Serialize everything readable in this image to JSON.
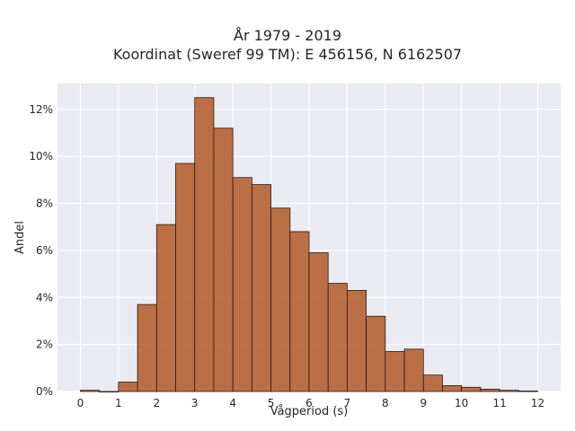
{
  "chart_data": {
    "type": "bar",
    "title": "År 1979 - 2019",
    "subtitle": "Koordinat (Sweref 99 TM): E 456156, N 6162507",
    "xlabel": "Vågperiod (s)",
    "ylabel": "Andel",
    "xlim": [
      -0.6,
      12.6
    ],
    "ylim": [
      0,
      0.131
    ],
    "xticks": [
      0,
      1,
      2,
      3,
      4,
      5,
      6,
      7,
      8,
      9,
      10,
      11,
      12
    ],
    "yticks": [
      0,
      0.02,
      0.04,
      0.06,
      0.08,
      0.1,
      0.12
    ],
    "ytick_labels": [
      "0%",
      "2%",
      "4%",
      "6%",
      "8%",
      "10%",
      "12%"
    ],
    "bin_width": 0.5,
    "bins": [
      {
        "x0": 0.0,
        "value": 0.0005
      },
      {
        "x0": 0.5,
        "value": 0.0
      },
      {
        "x0": 1.0,
        "value": 0.004
      },
      {
        "x0": 1.5,
        "value": 0.037
      },
      {
        "x0": 2.0,
        "value": 0.071
      },
      {
        "x0": 2.5,
        "value": 0.097
      },
      {
        "x0": 3.0,
        "value": 0.125
      },
      {
        "x0": 3.5,
        "value": 0.112
      },
      {
        "x0": 4.0,
        "value": 0.091
      },
      {
        "x0": 4.5,
        "value": 0.088
      },
      {
        "x0": 5.0,
        "value": 0.078
      },
      {
        "x0": 5.5,
        "value": 0.068
      },
      {
        "x0": 6.0,
        "value": 0.059
      },
      {
        "x0": 6.5,
        "value": 0.046
      },
      {
        "x0": 7.0,
        "value": 0.043
      },
      {
        "x0": 7.5,
        "value": 0.032
      },
      {
        "x0": 8.0,
        "value": 0.017
      },
      {
        "x0": 8.5,
        "value": 0.018
      },
      {
        "x0": 9.0,
        "value": 0.007
      },
      {
        "x0": 9.5,
        "value": 0.0025
      },
      {
        "x0": 10.0,
        "value": 0.0018
      },
      {
        "x0": 10.5,
        "value": 0.001
      },
      {
        "x0": 11.0,
        "value": 0.0005
      },
      {
        "x0": 11.5,
        "value": 0.0002
      }
    ],
    "grid": true,
    "colors": {
      "bar": "#b8683c",
      "bar_edge": "#2b1a10",
      "plot_bg": "#eaeaf2",
      "grid": "#ffffff"
    }
  }
}
